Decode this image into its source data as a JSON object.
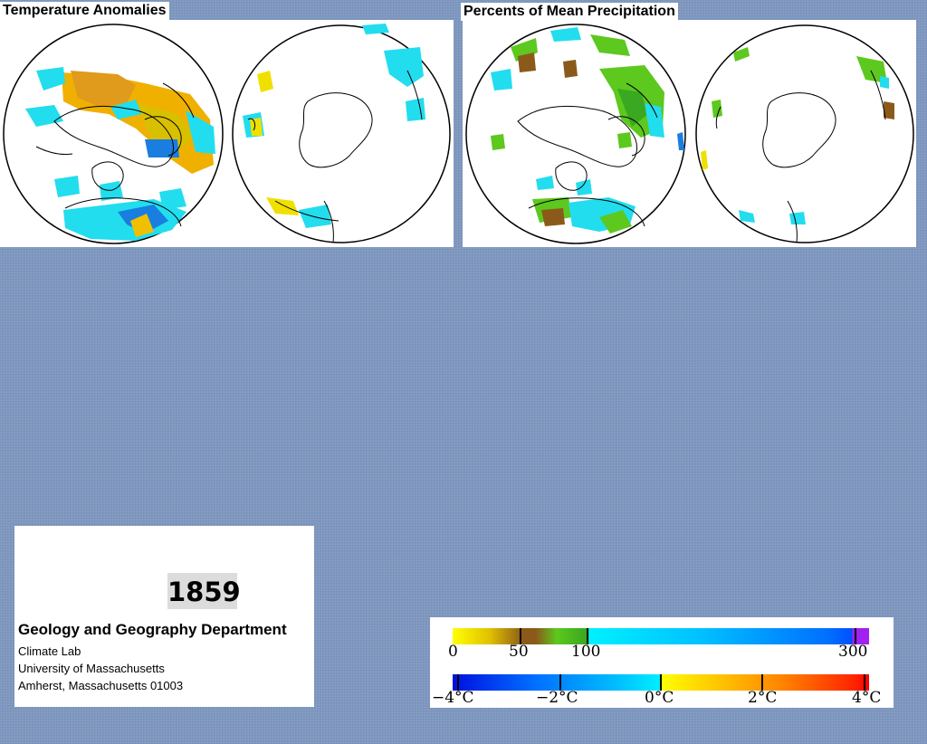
{
  "panels": {
    "temperature": {
      "title": "Temperature Anomalies"
    },
    "precipitation": {
      "title": "Percents of Mean Precipitation"
    }
  },
  "info": {
    "year": "1859",
    "department": "Geology and Geography Department",
    "lab": "Climate Lab",
    "university": "University of Massachusetts",
    "address": "Amherst, Massachusetts 01003"
  },
  "legend": {
    "precip_labels": [
      "0",
      "50",
      "100",
      "300"
    ],
    "temp_labels": [
      "−4°C",
      "−2°C",
      "0°C",
      "2°C",
      "4°C"
    ],
    "colors": {
      "precip_dry": "#ffff00",
      "precip_low": "#8b5a1a",
      "precip_mid": "#5dc81e",
      "precip_normal": "#00e8ff",
      "precip_high": "#0055ff",
      "precip_max": "#a020f0",
      "temp_cold": "#0010e0",
      "temp_cool": "#00f0ff",
      "temp_warm": "#ffe000",
      "temp_hot": "#ff1000"
    }
  }
}
